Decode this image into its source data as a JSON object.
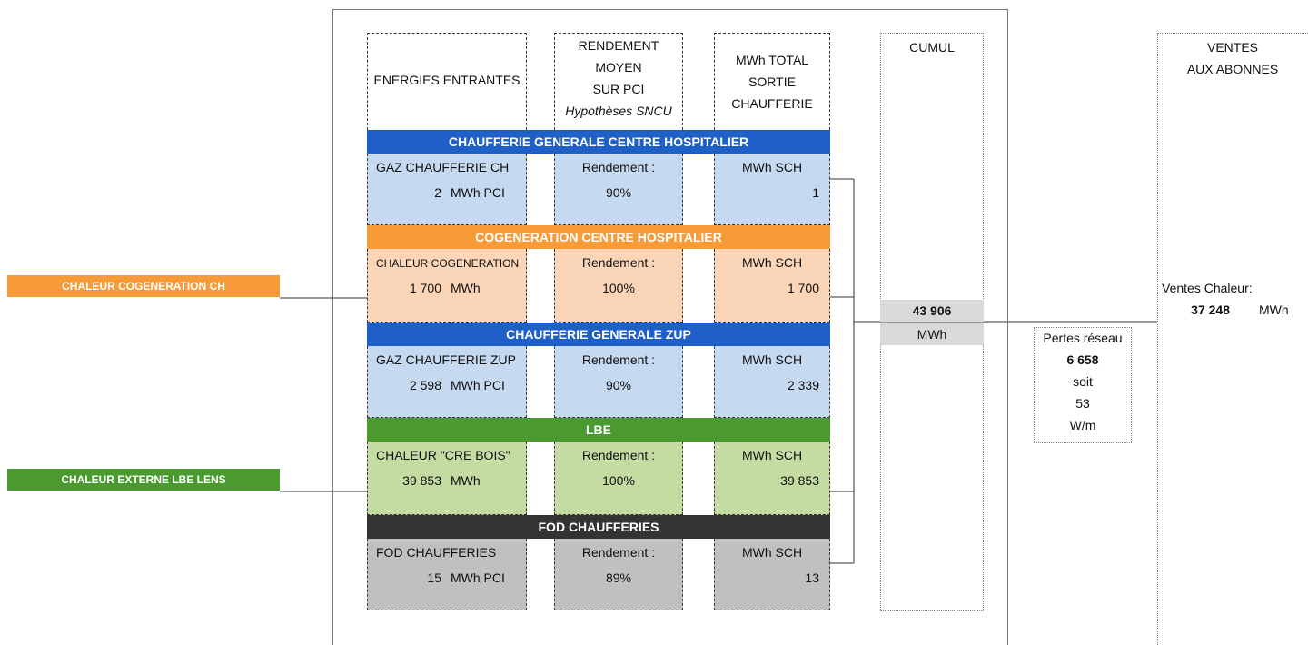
{
  "headers": {
    "inputs": "ENERGIES ENTRANTES",
    "efficiency": [
      "RENDEMENT",
      "MOYEN",
      "SUR PCI"
    ],
    "efficiency_note": "Hypothèses SNCU",
    "output": [
      "MWh TOTAL",
      "SORTIE",
      "CHAUFFERIE"
    ]
  },
  "sections": [
    {
      "title": "CHAUFFERIE GENERALE CENTRE HOSPITALIER",
      "bar_color": "#1f5fc8",
      "cell_color": "#c5d9f0",
      "input_label": "GAZ CHAUFFERIE CH",
      "input_value": "2",
      "input_unit": "MWh PCI",
      "efficiency_label": "Rendement :",
      "efficiency_value": "90%",
      "output_label": "MWh SCH",
      "output_value": "1"
    },
    {
      "title": "COGENERATION CENTRE HOSPITALIER",
      "bar_color": "#f79a38",
      "cell_color": "#fbd5b8",
      "input_label": "CHALEUR COGENERATION",
      "input_value": "1 700",
      "input_unit": "MWh",
      "efficiency_label": "Rendement :",
      "efficiency_value": "100%",
      "output_label": "MWh SCH",
      "output_value": "1 700"
    },
    {
      "title": "CHAUFFERIE GENERALE ZUP",
      "bar_color": "#1f5fc8",
      "cell_color": "#c5d9f0",
      "input_label": "GAZ CHAUFFERIE ZUP",
      "input_value": "2 598",
      "input_unit": "MWh PCI",
      "efficiency_label": "Rendement :",
      "efficiency_value": "90%",
      "output_label": "MWh SCH",
      "output_value": "2 339"
    },
    {
      "title": "LBE",
      "bar_color": "#4a9a30",
      "cell_color": "#c4dba2",
      "input_label": "CHALEUR \"CRE BOIS\"",
      "input_value": "39 853",
      "input_unit": "MWh",
      "efficiency_label": "Rendement :",
      "efficiency_value": "100%",
      "output_label": "MWh SCH",
      "output_value": "39 853"
    },
    {
      "title": "FOD CHAUFFERIES",
      "bar_color": "#333333",
      "cell_color": "#c0c0c0",
      "input_label": "FOD CHAUFFERIES",
      "input_value": "15",
      "input_unit": "MWh PCI",
      "efficiency_label": "Rendement :",
      "efficiency_value": "89%",
      "output_label": "MWh SCH",
      "output_value": "13"
    }
  ],
  "sources": [
    {
      "label": "CHALEUR COGENERATION CH",
      "color": "#f79a38"
    },
    {
      "label": "CHALEUR EXTERNE LBE LENS",
      "color": "#4a9a30"
    }
  ],
  "cumul": {
    "title": "CUMUL",
    "value": "43 906",
    "unit": "MWh"
  },
  "losses": {
    "label": "Pertes réseau",
    "value": "6 658",
    "connector": "soit",
    "per_length": "53",
    "unit": "W/m"
  },
  "sales": {
    "title": [
      "VENTES",
      "AUX ABONNES"
    ],
    "label": "Ventes Chaleur:",
    "value": "37 248",
    "unit": "MWh"
  }
}
